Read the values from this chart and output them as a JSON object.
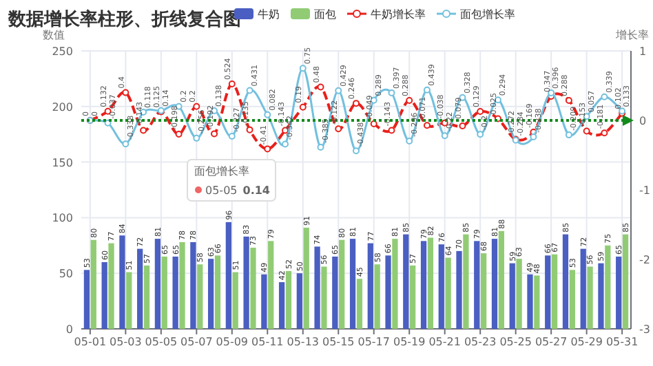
{
  "chart_data": {
    "type": "bar",
    "title": "数据增长率柱形、折线复合图",
    "ylabel": "数值",
    "y2label": "增长率",
    "categories": [
      "05-01",
      null,
      "05-03",
      null,
      "05-05",
      null,
      "05-07",
      null,
      "05-09",
      null,
      "05-11",
      null,
      "05-13",
      null,
      "05-15",
      null,
      "05-17",
      null,
      "05-19",
      null,
      "05-21",
      null,
      "05-23",
      null,
      "05-25",
      null,
      "05-27",
      null,
      "05-29",
      null,
      "05-31"
    ],
    "series": [
      {
        "name": "牛奶",
        "color": "#4a5fc1",
        "values": [
          53,
          60,
          84,
          72,
          81,
          65,
          78,
          63,
          96,
          83,
          49,
          42,
          50,
          74,
          65,
          81,
          77,
          66,
          85,
          79,
          76,
          70,
          79,
          81,
          59,
          49,
          66,
          85,
          72,
          59,
          65
        ]
      },
      {
        "name": "面包",
        "color": "#91cc75",
        "values": [
          80,
          77,
          51,
          57,
          65,
          78,
          58,
          66,
          51,
          73,
          79,
          52,
          91,
          56,
          80,
          45,
          58,
          81,
          57,
          82,
          64,
          85,
          68,
          88,
          63,
          48,
          67,
          53,
          56,
          75,
          85
        ]
      },
      {
        "name": "牛奶增长率",
        "type": "line",
        "axis": "y2",
        "color": "#e8201c",
        "line_style": "dashed",
        "values": [
          0,
          0.132,
          0.4,
          -0.143,
          0.125,
          -0.198,
          0.2,
          -0.192,
          0.524,
          -0.135,
          -0.41,
          -0.143,
          0.19,
          0.48,
          -0.122,
          0.246,
          -0.049,
          -0.143,
          0.288,
          -0.071,
          -0.038,
          -0.079,
          0.129,
          0.025,
          -0.272,
          -0.169,
          0.347,
          0.288,
          -0.153,
          -0.181,
          0.102
        ]
      },
      {
        "name": "面包增长率",
        "type": "line",
        "axis": "y2",
        "color": "#73c0de",
        "line_style": "solid",
        "values": [
          0,
          -0.037,
          -0.338,
          0.118,
          0.14,
          0.2,
          -0.256,
          0.138,
          -0.227,
          0.431,
          0.082,
          -0.342,
          0.75,
          -0.385,
          0.429,
          -0.438,
          0.289,
          0.397,
          -0.296,
          0.439,
          -0.22,
          0.328,
          -0.2,
          0.294,
          -0.284,
          -0.238,
          0.396,
          -0.209,
          0.057,
          0.339,
          0.133
        ]
      }
    ],
    "ylim": [
      0,
      250
    ],
    "yticks": [
      0,
      50,
      100,
      150,
      200,
      250
    ],
    "y2lim": [
      -3,
      1
    ],
    "y2ticks": [
      -3,
      -2,
      -1,
      0,
      1
    ],
    "ref_lines": [
      {
        "axis": "y2",
        "value": 0,
        "color": "#138a1c",
        "line_style": "dotted"
      }
    ],
    "annotations": [
      "面包增长率",
      "05-05",
      "0.14"
    ],
    "data_labels": true,
    "grid": true,
    "legend": "top",
    "marker": "circle"
  }
}
